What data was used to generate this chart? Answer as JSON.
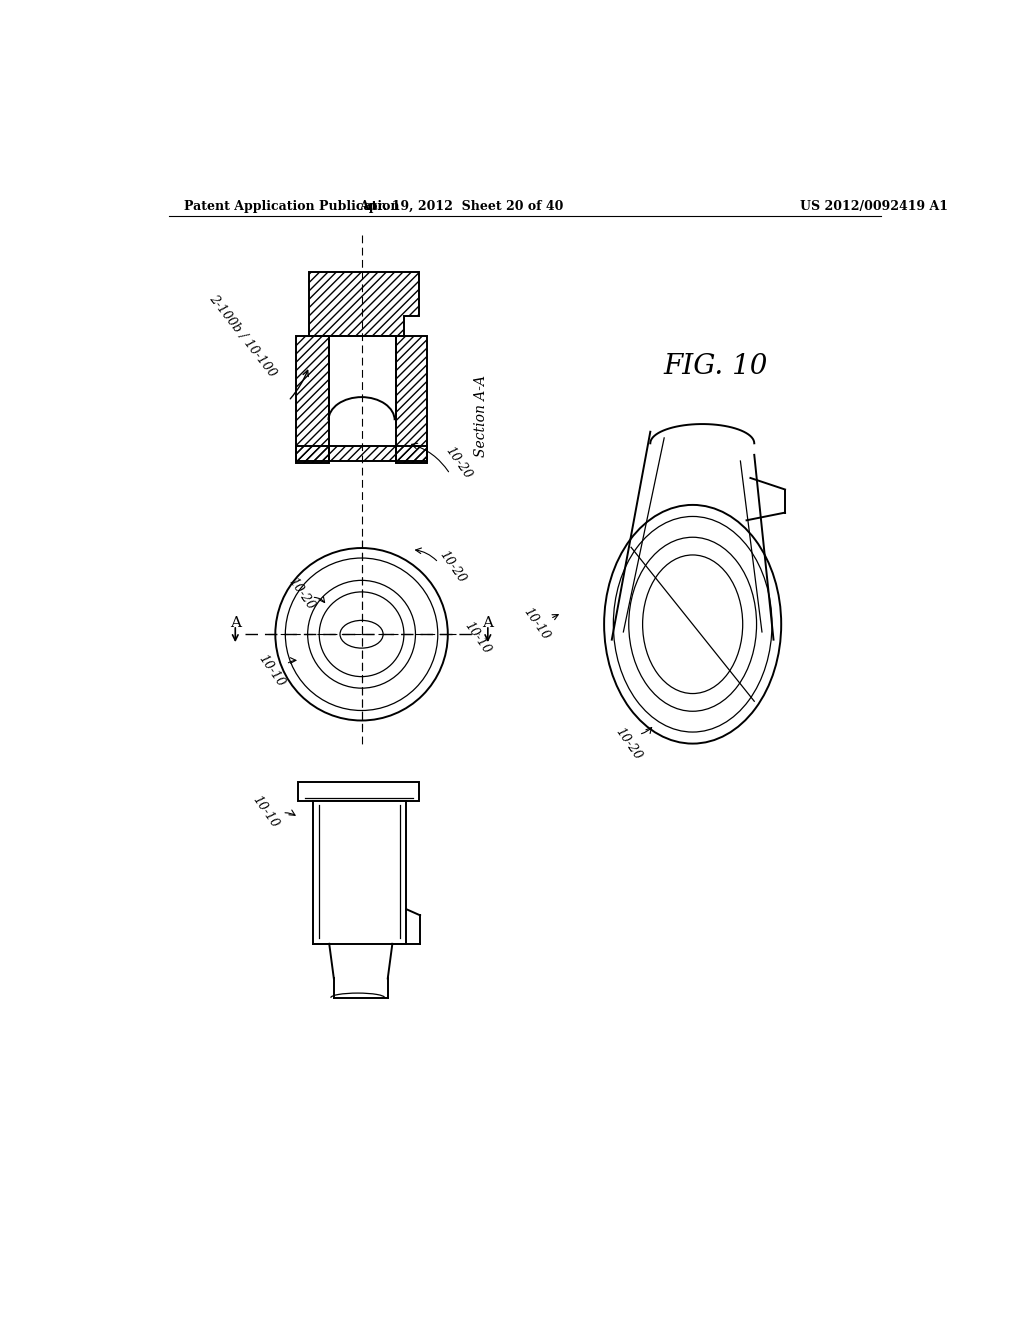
{
  "bg_color": "#ffffff",
  "line_color": "#000000",
  "header_left": "Patent Application Publication",
  "header_mid": "Apr. 19, 2012  Sheet 20 of 40",
  "header_right": "US 2012/0092419 A1",
  "fig_label": "FIG. 10",
  "section_label": "Section A-A",
  "label_2_100b": "2-100b / 10-100",
  "label_10_20_cross": "10-20",
  "label_10_20_circle_left": "10-20",
  "label_10_20_circle_right": "10-20",
  "label_10_10_circle": "10-10",
  "label_10_10_side": "10-10",
  "label_10_20_3d": "10-20",
  "label_10_10_bottom": "10-10",
  "label_A_left": "A",
  "label_A_right": "A"
}
